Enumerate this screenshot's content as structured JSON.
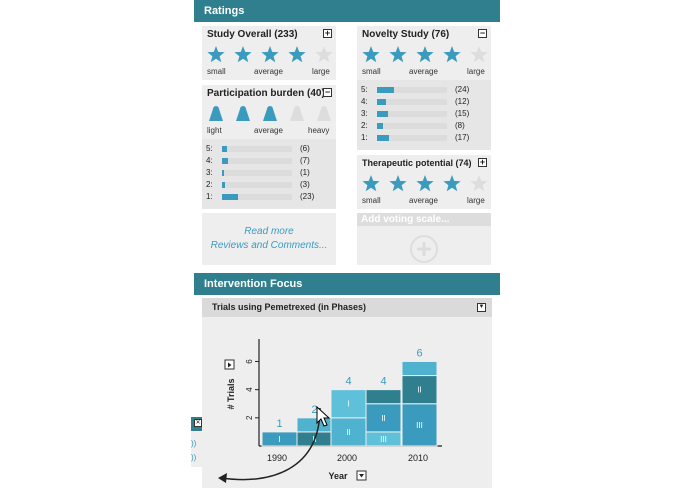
{
  "ratings_header": "Ratings",
  "study_overall": {
    "title": "Study Overall (233)",
    "toggle": "+",
    "filled": 4,
    "total": 5,
    "labels": [
      "small",
      "average",
      "large"
    ]
  },
  "novelty_study": {
    "title": "Novelty Study (76)",
    "toggle": "−",
    "filled": 4,
    "total": 5,
    "labels": [
      "small",
      "average",
      "large"
    ],
    "histogram": [
      {
        "level": "5:",
        "count": "(24)",
        "fraction": 0.24
      },
      {
        "level": "4:",
        "count": "(12)",
        "fraction": 0.12
      },
      {
        "level": "3:",
        "count": "(15)",
        "fraction": 0.15
      },
      {
        "level": "2:",
        "count": "(8)",
        "fraction": 0.08
      },
      {
        "level": "1:",
        "count": "(17)",
        "fraction": 0.17
      }
    ]
  },
  "participation_burden": {
    "title": "Participation burden (40)",
    "toggle": "−",
    "filled": 3,
    "total": 5,
    "labels": [
      "light",
      "average",
      "heavy"
    ],
    "histogram": [
      {
        "level": "5:",
        "count": "(6)",
        "fraction": 0.06
      },
      {
        "level": "4:",
        "count": "(7)",
        "fraction": 0.07
      },
      {
        "level": "3:",
        "count": "(1)",
        "fraction": 0.01
      },
      {
        "level": "2:",
        "count": "(3)",
        "fraction": 0.03
      },
      {
        "level": "1:",
        "count": "(23)",
        "fraction": 0.23
      }
    ]
  },
  "therapeutic_potential": {
    "title": "Therapeutic potential (74)",
    "toggle": "+",
    "filled": 4,
    "total": 5,
    "labels": [
      "small",
      "average",
      "large"
    ]
  },
  "read_more": {
    "line1": "Read more",
    "line2": "Reviews and Comments..."
  },
  "add_voting_scale": "Add voting scale...",
  "intervention_header": "Intervention Focus",
  "chart_panel_title": "Trials using Pemetrexed (in Phases)",
  "colors": {
    "accent": "#2f7f8f",
    "star": "#3a9bbf",
    "star_empty": "#dddddd"
  },
  "chart_data": {
    "type": "bar",
    "stacked": true,
    "xlabel": "Year",
    "ylabel": "# Trials",
    "x_ticks": [
      "1990",
      "2000",
      "2010"
    ],
    "y_ticks": [
      "2",
      "4",
      "6"
    ],
    "ylim": [
      0,
      6.6
    ],
    "categories": [
      "1990",
      "1995",
      "2000",
      "2005",
      "2010"
    ],
    "totals": [
      "1",
      "2",
      "4",
      "4",
      "6"
    ],
    "segments": [
      [
        {
          "phase": "I",
          "value": 1
        }
      ],
      [
        {
          "phase": "II",
          "value": 1
        },
        {
          "phase": "",
          "value": 1
        }
      ],
      [
        {
          "phase": "II",
          "value": 2
        },
        {
          "phase": "I",
          "value": 2
        }
      ],
      [
        {
          "phase": "III",
          "value": 1
        },
        {
          "phase": "II",
          "value": 2
        },
        {
          "phase": "",
          "value": 1
        }
      ],
      [
        {
          "phase": "III",
          "value": 3
        },
        {
          "phase": "II",
          "value": 2
        },
        {
          "phase": "",
          "value": 1
        }
      ]
    ]
  }
}
